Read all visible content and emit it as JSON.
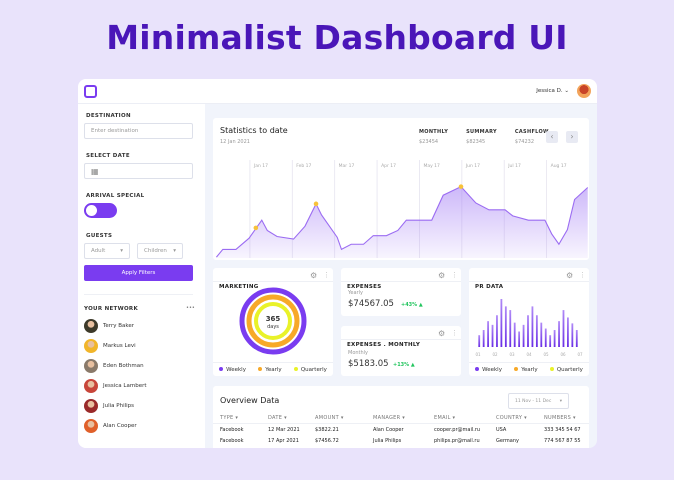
{
  "page_title": "Minimalist Dashboard UI",
  "colors": {
    "accent": "#7a3cf0",
    "orange": "#f7a928",
    "yellow": "#e9f229",
    "positive": "#22c55e"
  },
  "topbar": {
    "user_name": "Jessica D.",
    "icons": [
      "logo-square-icon",
      "chevron-down-icon",
      "avatar"
    ]
  },
  "sidebar": {
    "destination_label": "DESTINATION",
    "destination_placeholder": "Enter destination",
    "date_label": "SELECT DATE",
    "arrival_label": "ARRIVAL SPECIAL",
    "arrival_toggle_on": true,
    "guests_label": "GUESTS",
    "adult": "Adult",
    "children": "Children",
    "apply": "Apply Filters",
    "network_label": "YOUR NETWORK",
    "more": "•••",
    "network": [
      {
        "name": "Terry Baker",
        "color": "#3d3a2a"
      },
      {
        "name": "Markus Levi",
        "color": "#f1b52a"
      },
      {
        "name": "Eden Bothman",
        "color": "#8a7a6a"
      },
      {
        "name": "Jessica Lambert",
        "color": "#c8463a"
      },
      {
        "name": "Julia Philips",
        "color": "#9a2a2a"
      },
      {
        "name": "Alan Cooper",
        "color": "#e0602a"
      }
    ]
  },
  "stats": {
    "title": "Statistics to date",
    "date": "12 Jan 2021",
    "kpis": [
      {
        "label": "MONTHLY",
        "value": "$23454"
      },
      {
        "label": "SUMMARY",
        "value": "$82345"
      },
      {
        "label": "CASHFLOW",
        "value": "$74232"
      }
    ],
    "prev": "‹",
    "next": "›"
  },
  "chart_data": [
    {
      "type": "area",
      "months": [
        "Jan 17",
        "Feb 17",
        "Mar 17",
        "Apr 17",
        "May 17",
        "Jun 17",
        "Jul 17",
        "Aug 17"
      ],
      "x": [
        -0.79,
        -0.64,
        -0.33,
        -0.02,
        0.28,
        0.41,
        0.64,
        1.03,
        1.3,
        1.56,
        1.69,
        2.06,
        2.16,
        2.39,
        2.68,
        2.91,
        3.22,
        3.49,
        3.69,
        4.29,
        4.56,
        4.98,
        5.33,
        5.64,
        6.02,
        6.2,
        6.57,
        6.96,
        7.12,
        7.29,
        7.49,
        7.66,
        7.97
      ],
      "y": [
        1,
        10,
        10,
        23,
        44,
        32,
        25,
        22,
        37,
        63,
        50,
        24,
        10,
        16,
        16,
        26,
        26,
        32,
        44,
        44,
        73,
        83,
        64,
        56,
        56,
        49,
        44,
        44,
        28,
        16,
        33,
        68,
        82
      ],
      "highlights": [
        {
          "x": 0.14,
          "y": 35
        },
        {
          "x": 1.56,
          "y": 63
        },
        {
          "x": 4.98,
          "y": 83
        }
      ],
      "grid": "vertical",
      "xlim": [
        -0.8,
        8
      ],
      "ylim": [
        0,
        100
      ]
    },
    {
      "type": "bar",
      "title": "PR DATA",
      "ticks": [
        "01",
        "02",
        "03",
        "04",
        "05",
        "06",
        "07"
      ],
      "values": [
        32,
        46,
        70,
        60,
        86,
        130,
        110,
        100,
        66,
        42,
        60,
        86,
        110,
        86,
        66,
        50,
        32,
        46,
        70,
        100,
        80,
        64,
        46
      ]
    }
  ],
  "marketing": {
    "title": "MARKETING",
    "center_value": "365",
    "center_unit": "days",
    "legend": [
      "Weekly",
      "Yearly",
      "Quarterly"
    ]
  },
  "expenses": {
    "title": "EXPENSES",
    "period": "Yearly",
    "value": "$74567.05",
    "change": "+43%"
  },
  "expenses_monthly": {
    "title": "EXPENSES . MONTHLY",
    "period": "Monthly",
    "value": "$5183.05",
    "change": "+13%"
  },
  "pr": {
    "title": "PR DATA",
    "legend": [
      "Weekly",
      "Yearly",
      "Quarterly"
    ]
  },
  "overview": {
    "title": "Overview Data",
    "range": "11 Nov - 11 Dec",
    "columns": [
      "TYPE",
      "DATE",
      "AMOUNT",
      "MANAGER",
      "EMAIL",
      "COUNTRY",
      "NUMBERS"
    ],
    "rows": [
      [
        "Facebook",
        "12 Mar 2021",
        "$3822.21",
        "Alan Cooper",
        "cooper.pr@mail.ru",
        "USA",
        "333 345 54 67"
      ],
      [
        "Facebook",
        "17 Apr 2021",
        "$7456.72",
        "Julia Philips",
        "philips.pr@mail.ru",
        "Germany",
        "774 567 87 55"
      ]
    ]
  }
}
